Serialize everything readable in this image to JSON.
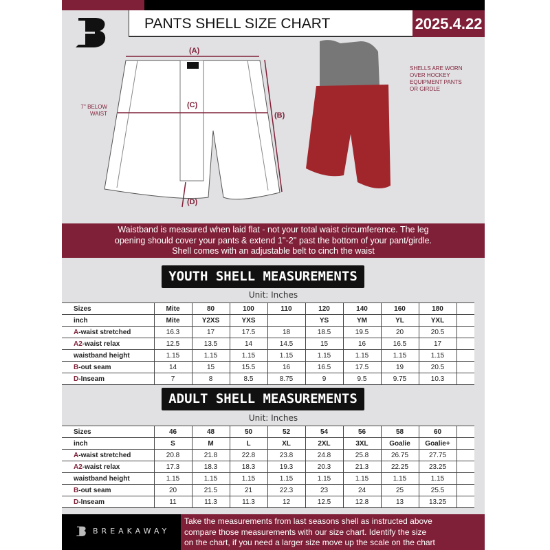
{
  "header": {
    "title": "PANTS SHELL SIZE CHART",
    "date": "2025.4.22"
  },
  "diagram": {
    "label_a": "(A)",
    "label_b": "(B)",
    "label_c": "(C)",
    "label_d": "(D)",
    "c_note": [
      "7'' BELOW",
      "WAIST"
    ],
    "photo_note": [
      "SHELLS ARE WORN",
      "OVER HOCKEY",
      "EQUIPMENT PANTS",
      "OR GIRDLE"
    ]
  },
  "banner": [
    "Waistband is measured when laid flat - not your total waist circumference. The leg",
    "opening should cover your pants & extend 1''-2'' past the bottom of your pant/girdle.",
    "Shell comes with an adjustable belt to cinch the waist"
  ],
  "colors": {
    "brand": "#7f2038",
    "dark": "#000000"
  },
  "youth": {
    "title": "YOUTH SHELL MEASUREMENTS",
    "unit": "Unit: Inches",
    "rows": [
      {
        "prefix": "",
        "label": "Sizes",
        "values": [
          "Mite",
          "80",
          "100",
          "110",
          "120",
          "140",
          "160",
          "180"
        ]
      },
      {
        "prefix": "",
        "label": "inch",
        "values": [
          "Mite",
          "Y2XS",
          "YXS",
          "",
          "YS",
          "YM",
          "YL",
          "YXL"
        ]
      },
      {
        "prefix": "A",
        "label": "-waist stretched",
        "values": [
          "16.3",
          "17",
          "17.5",
          "18",
          "18.5",
          "19.5",
          "20",
          "20.5"
        ]
      },
      {
        "prefix": "A2",
        "label": "-waist relax",
        "values": [
          "12.5",
          "13.5",
          "14",
          "14.5",
          "15",
          "16",
          "16.5",
          "17"
        ]
      },
      {
        "prefix": "",
        "label": "waistband height",
        "values": [
          "1.15",
          "1.15",
          "1.15",
          "1.15",
          "1.15",
          "1.15",
          "1.15",
          "1.15"
        ]
      },
      {
        "prefix": "B",
        "label": "-out seam",
        "values": [
          "14",
          "15",
          "15.5",
          "16",
          "16.5",
          "17.5",
          "19",
          "20.5"
        ]
      },
      {
        "prefix": "D",
        "label": "-Inseam",
        "values": [
          "7",
          "8",
          "8.5",
          "8.75",
          "9",
          "9.5",
          "9.75",
          "10.3"
        ]
      }
    ]
  },
  "adult": {
    "title": "ADULT SHELL MEASUREMENTS",
    "unit": "Unit: Inches",
    "rows": [
      {
        "prefix": "",
        "label": "Sizes",
        "values": [
          "46",
          "48",
          "50",
          "52",
          "54",
          "56",
          "58",
          "60"
        ]
      },
      {
        "prefix": "",
        "label": "inch",
        "values": [
          "S",
          "M",
          "L",
          "XL",
          "2XL",
          "3XL",
          "Goalie",
          "Goalie+"
        ]
      },
      {
        "prefix": "A",
        "label": "-waist stretched",
        "values": [
          "20.8",
          "21.8",
          "22.8",
          "23.8",
          "24.8",
          "25.8",
          "26.75",
          "27.75"
        ]
      },
      {
        "prefix": "A2",
        "label": "-waist relax",
        "values": [
          "17.3",
          "18.3",
          "18.3",
          "19.3",
          "20.3",
          "21.3",
          "22.25",
          "23.25"
        ]
      },
      {
        "prefix": "",
        "label": "waistband height",
        "values": [
          "1.15",
          "1.15",
          "1.15",
          "1.15",
          "1.15",
          "1.15",
          "1.15",
          "1.15"
        ]
      },
      {
        "prefix": "B",
        "label": "-out seam",
        "values": [
          "20",
          "21.5",
          "21",
          "22.3",
          "23",
          "24",
          "25",
          "25.5"
        ]
      },
      {
        "prefix": "D",
        "label": "-Inseam",
        "values": [
          "11",
          "11.3",
          "11.3",
          "12",
          "12.5",
          "12.8",
          "13",
          "13.25"
        ]
      }
    ]
  },
  "footer": {
    "brand": "BREAKAWAY",
    "text": [
      "Take the measurements from last seasons shell as instructed above",
      "compare those measurements  with our size chart. Identify the size",
      "on the chart, if you need a larger size move up the scale on the chart"
    ]
  }
}
